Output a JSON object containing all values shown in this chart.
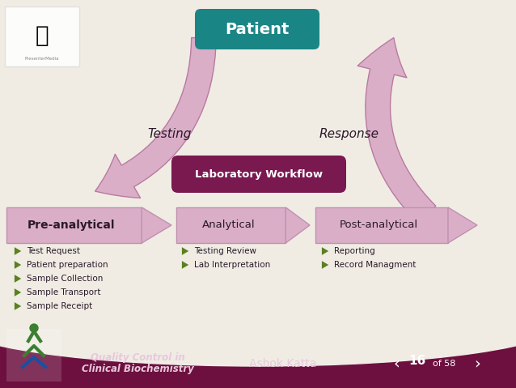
{
  "bg_color": "#f0ece4",
  "footer_color": "#6d1040",
  "patient_box_color": "#1a8585",
  "lab_workflow_box_color": "#7a1850",
  "arrow_fill_color": "#dbaec8",
  "arrow_edge_color": "#b87aa0",
  "phase_fill_color": "#dbaec8",
  "phase_edge_color": "#c090b0",
  "bullet_color": "#5a8020",
  "title_patient": "Patient",
  "title_lab": "Laboratory Workflow",
  "label_testing": "Testing",
  "label_response": "Response",
  "phases": [
    "Pre-analytical",
    "Analytical",
    "Post-analytical"
  ],
  "phase_items": [
    [
      "Test Request",
      "Patient preparation",
      "Sample Collection",
      "Sample Transport",
      "Sample Receipt"
    ],
    [
      "Testing Review",
      "Lab Interpretation"
    ],
    [
      "Reporting",
      "Record Managment"
    ]
  ],
  "footer_left1": "Quality Control in",
  "footer_left2": "Clinical Biochemistry",
  "footer_center": "Ashok Katta",
  "footer_page": "16",
  "footer_total": "of 58",
  "text_dark": "#2a1a2a",
  "text_white": "#ffffff",
  "text_footer": "#e8c8dc"
}
